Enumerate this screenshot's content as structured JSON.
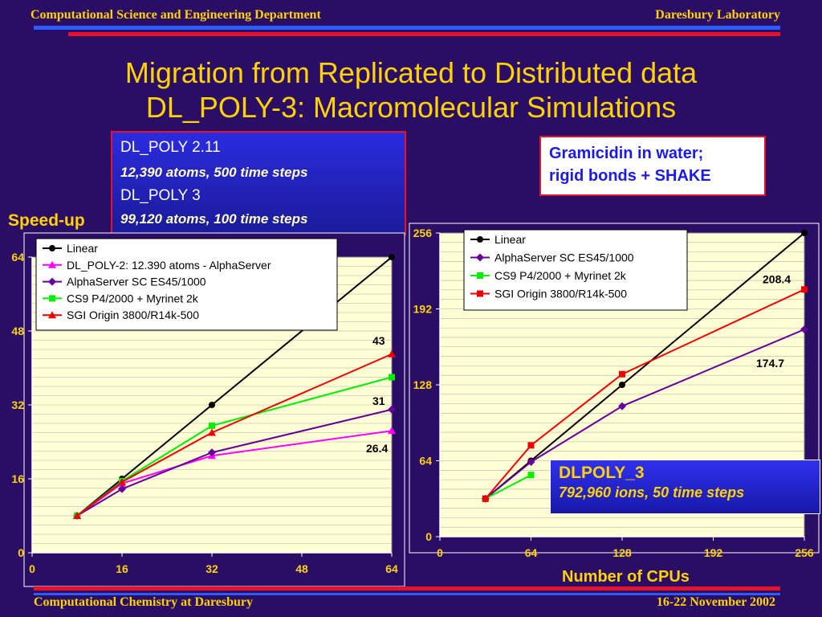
{
  "header": {
    "left": "Computational Science and Engineering Department",
    "right": "Daresbury Laboratory"
  },
  "title": {
    "line1": "Migration from Replicated to Distributed data",
    "line2": "DL_POLY-3: Macromolecular Simulations"
  },
  "info_box": {
    "line1": "DL_POLY 2.11",
    "line2": "12,390 atoms, 500 time steps",
    "line3": "DL_POLY 3",
    "line4": "99,120 atoms, 100 time steps"
  },
  "gramicidin_box": {
    "line1": "Gramicidin in water;",
    "line2": "rigid bonds + SHAKE"
  },
  "speedup_label": "Speed-up",
  "xlabel_right": "Number of CPUs",
  "dlpoly3_box": {
    "line1": "DLPOLY_3",
    "line2": "792,960 ions, 50 time steps"
  },
  "footer": {
    "left": "Computational Chemistry at Daresbury",
    "right": "16-22 November 2002"
  },
  "colors": {
    "background": "#2a0e66",
    "accent_yellow": "#ffd200",
    "plot_bg": "#ffffd6"
  },
  "chart_data": [
    {
      "type": "line",
      "xlim": [
        0,
        64
      ],
      "ylim": [
        0,
        64
      ],
      "xticks": [
        0,
        16,
        32,
        48,
        64
      ],
      "yticks": [
        0,
        16,
        32,
        48,
        64
      ],
      "grid": true,
      "legend_position": "top-left",
      "series": [
        {
          "name": "Linear",
          "color": "#000000",
          "marker": "circle",
          "x": [
            8,
            16,
            32,
            64
          ],
          "y": [
            8,
            16,
            32,
            64
          ]
        },
        {
          "name": "DL_POLY-2: 12.390 atoms - AlphaServer",
          "color": "#ff00ff",
          "marker": "triangle",
          "x": [
            8,
            16,
            32,
            64
          ],
          "y": [
            8,
            15,
            21,
            26.4
          ]
        },
        {
          "name": "AlphaServer SC ES45/1000",
          "color": "#660099",
          "marker": "diamond",
          "x": [
            8,
            16,
            32,
            64
          ],
          "y": [
            8,
            13.8,
            21.7,
            31
          ]
        },
        {
          "name": "CS9 P4/2000 + Myrinet 2k",
          "color": "#00ee00",
          "marker": "square",
          "x": [
            8,
            16,
            32,
            64
          ],
          "y": [
            8,
            15.5,
            27.5,
            38
          ]
        },
        {
          "name": "SGI Origin 3800/R14k-500",
          "color": "#ee0000",
          "marker": "triangle",
          "x": [
            8,
            16,
            32,
            64
          ],
          "y": [
            8,
            15.3,
            26,
            43
          ]
        }
      ],
      "annotations": [
        {
          "text": "43",
          "x": 64,
          "y": 43
        },
        {
          "text": "31",
          "x": 64,
          "y": 31
        },
        {
          "text": "26.4",
          "x": 64,
          "y": 26.4
        }
      ]
    },
    {
      "type": "line",
      "xlim": [
        0,
        256
      ],
      "ylim": [
        0,
        256
      ],
      "xticks": [
        0,
        64,
        128,
        192,
        256
      ],
      "yticks": [
        0,
        64,
        128,
        192,
        256
      ],
      "grid": true,
      "legend_position": "top-left",
      "xlabel": "Number of CPUs",
      "series": [
        {
          "name": "Linear",
          "color": "#000000",
          "marker": "circle",
          "x": [
            32,
            64,
            128,
            256
          ],
          "y": [
            32,
            64,
            128,
            256
          ]
        },
        {
          "name": "AlphaServer SC ES45/1000",
          "color": "#660099",
          "marker": "diamond",
          "x": [
            32,
            64,
            128,
            256
          ],
          "y": [
            32,
            63,
            110,
            174.7
          ]
        },
        {
          "name": "CS9 P4/2000 + Myrinet 2k",
          "color": "#00ee00",
          "marker": "square",
          "x": [
            32,
            64
          ],
          "y": [
            32,
            52
          ]
        },
        {
          "name": "SGI Origin 3800/R14k-500",
          "color": "#ee0000",
          "marker": "square",
          "x": [
            32,
            64,
            128,
            256
          ],
          "y": [
            32,
            77,
            137,
            208.4
          ]
        }
      ],
      "annotations": [
        {
          "text": "208.4",
          "x": 256,
          "y": 208.4
        },
        {
          "text": "174.7",
          "x": 256,
          "y": 174.7
        }
      ]
    }
  ]
}
